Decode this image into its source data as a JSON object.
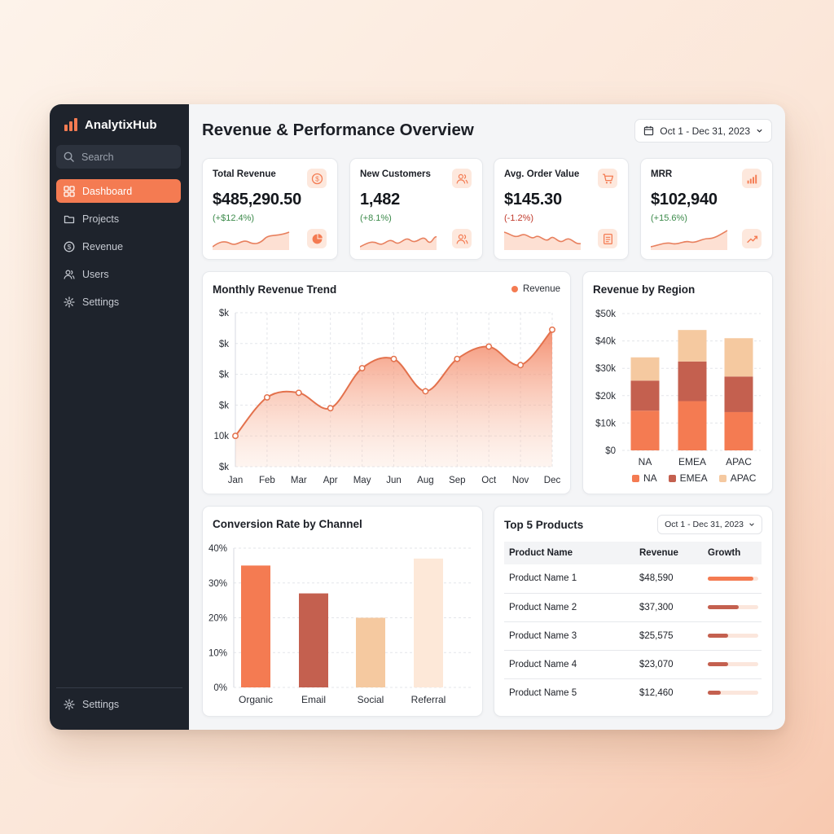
{
  "app": {
    "name": "AnalytixHub"
  },
  "search": {
    "placeholder": "Search"
  },
  "nav": {
    "items": [
      {
        "label": "Dashboard",
        "icon": "grid-icon",
        "active": true
      },
      {
        "label": "Projects",
        "icon": "folder-icon"
      },
      {
        "label": "Revenue",
        "icon": "dollar-icon"
      },
      {
        "label": "Users",
        "icon": "users-icon"
      },
      {
        "label": "Settings",
        "icon": "gear-icon"
      }
    ],
    "footer_label": "Settings"
  },
  "header": {
    "title": "Revenue & Performance Overview",
    "date_range": "Oct 1 - Dec 31, 2023"
  },
  "colors": {
    "accent": "#f47b52",
    "dark_accent": "#c4604f",
    "light_accent": "#f5c9a0",
    "pale_accent": "#fde8d8",
    "sidebar": "#1e232c"
  },
  "kpis": [
    {
      "title": "Total Revenue",
      "value": "$485,290.50",
      "delta": "(+$12.4%)",
      "trend": "up",
      "icon": "dollar-circle-icon",
      "footer_icon": "pie-chart-icon"
    },
    {
      "title": "New Customers",
      "value": "1,482",
      "delta": "(+8.1%)",
      "trend": "up",
      "icon": "users-icon",
      "footer_icon": "users-icon"
    },
    {
      "title": "Avg. Order Value",
      "value": "$145.30",
      "delta": "(-1.2%)",
      "trend": "down",
      "icon": "cart-icon",
      "footer_icon": "receipt-icon"
    },
    {
      "title": "MRR",
      "value": "$102,940",
      "delta": "(+15.6%)",
      "trend": "up",
      "icon": "bar-signal-icon",
      "footer_icon": "trend-up-icon"
    }
  ],
  "chart_data": [
    {
      "type": "area",
      "title": "Monthly Revenue Trend",
      "legend": [
        "Revenue"
      ],
      "categories": [
        "Jan",
        "Feb",
        "Mar",
        "Apr",
        "May",
        "Jun",
        "Aug",
        "Sep",
        "Oct",
        "Nov",
        "Dec"
      ],
      "values": [
        1,
        2.25,
        2.4,
        1.9,
        3.2,
        3.5,
        2.45,
        3.5,
        3.9,
        3.3,
        4.45
      ],
      "y_tick_labels": [
        "$k",
        "10k",
        "$k",
        "$k",
        "$k",
        "$k"
      ],
      "ylim": [
        0,
        5
      ],
      "grid": true
    },
    {
      "type": "bar",
      "stacked": true,
      "title": "Revenue by Region",
      "categories": [
        "NA",
        "EMEA",
        "APAC"
      ],
      "series": [
        {
          "name": "NA",
          "values": [
            14500,
            18000,
            14000
          ]
        },
        {
          "name": "EMEA",
          "values": [
            11000,
            14500,
            13000
          ]
        },
        {
          "name": "APAC",
          "values": [
            8500,
            11500,
            14000
          ]
        }
      ],
      "y_tick_labels": [
        "$0",
        "$10k",
        "$20k",
        "$30k",
        "$40k",
        "$50k"
      ],
      "ylim": [
        0,
        50000
      ],
      "grid": true,
      "legend": [
        "NA",
        "EMEA",
        "APAC"
      ]
    },
    {
      "type": "bar",
      "title": "Conversion Rate by Channel",
      "categories": [
        "Organic",
        "Email",
        "Social",
        "Referral"
      ],
      "values": [
        35,
        27,
        20,
        37
      ],
      "y_tick_labels": [
        "0%",
        "10%",
        "20%",
        "30%",
        "40%"
      ],
      "ylim": [
        0,
        40
      ],
      "grid": true
    }
  ],
  "products": {
    "title": "Top 5 Products",
    "date_range": "Oct 1 - Dec 31, 2023",
    "columns": [
      "Product Name",
      "Revenue",
      "Growth"
    ],
    "rows": [
      {
        "name": "Product Name 1",
        "revenue": "$48,590",
        "growth": 0.9
      },
      {
        "name": "Product Name 2",
        "revenue": "$37,300",
        "growth": 0.62
      },
      {
        "name": "Product Name 3",
        "revenue": "$25,575",
        "growth": 0.4
      },
      {
        "name": "Product Name 4",
        "revenue": "$23,070",
        "growth": 0.4
      },
      {
        "name": "Product Name 5",
        "revenue": "$12,460",
        "growth": 0.25
      }
    ]
  }
}
